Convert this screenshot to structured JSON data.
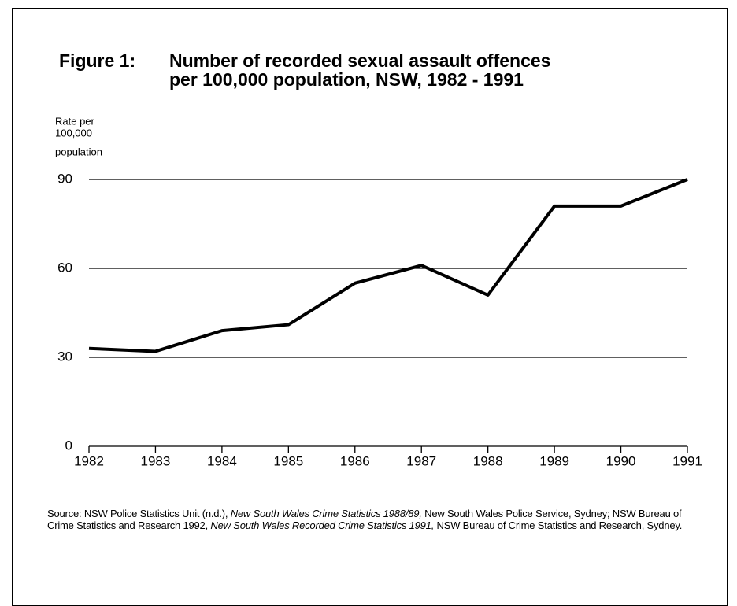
{
  "chart_data": {
    "type": "line",
    "figure_label": "Figure 1:",
    "title": [
      "Number of recorded sexual assault offences",
      "per 100,000 population, NSW, 1982 - 1991"
    ],
    "y_label": [
      "Rate per",
      "100,000",
      "population"
    ],
    "x": [
      1982,
      1983,
      1984,
      1985,
      1986,
      1987,
      1988,
      1989,
      1990,
      1991
    ],
    "values": [
      33,
      32,
      39,
      41,
      55,
      61,
      51,
      81,
      81,
      90
    ],
    "color": "#000000",
    "xlim": [
      1982,
      1991
    ],
    "xticks": [
      1982,
      1983,
      1984,
      1985,
      1986,
      1987,
      1988,
      1989,
      1990,
      1991
    ],
    "ylim": [
      0,
      90
    ],
    "yticks": [
      0,
      30,
      60,
      90
    ],
    "grid": true,
    "source": [
      "Source:  NSW Police Statistics Unit (n.d.), ",
      "New South Wales Crime Statistics 1988/89,",
      " New South Wales Police Service, Sydney; NSW Bureau of Crime Statistics and Research 1992, ",
      "New South Wales Recorded Crime Statistics 1991,",
      " NSW Bureau of Crime Statistics and Research, Sydney."
    ]
  }
}
